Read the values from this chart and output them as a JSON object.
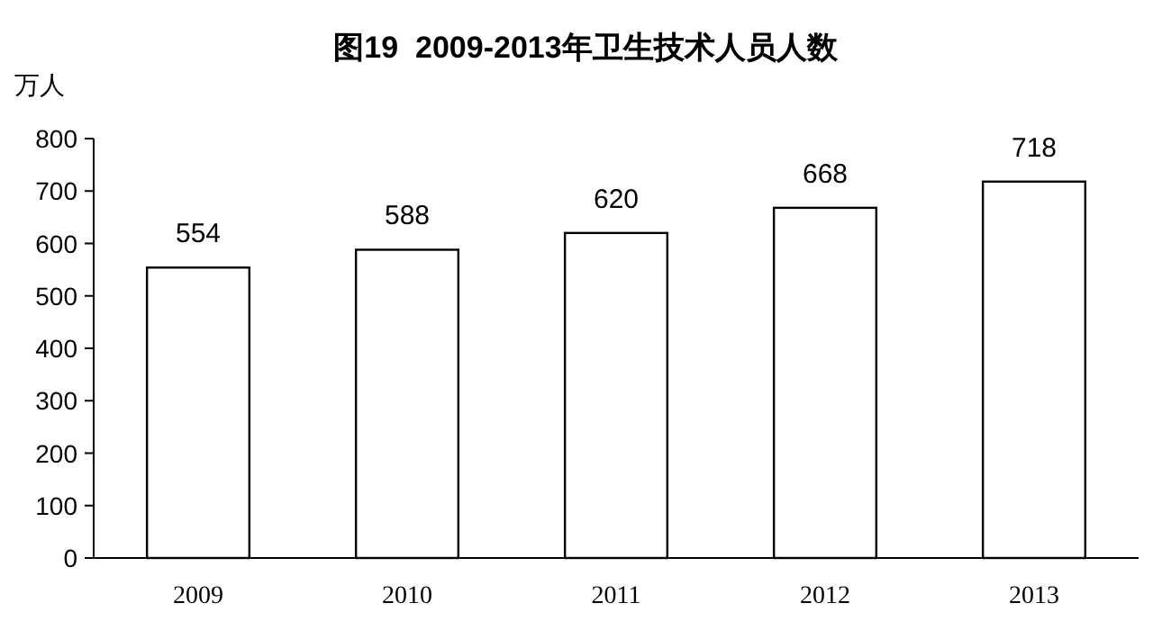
{
  "chart_data": {
    "type": "bar",
    "title": "图19  2009-2013年卫生技术人员人数",
    "ylabel": "万人",
    "categories": [
      "2009",
      "2010",
      "2011",
      "2012",
      "2013"
    ],
    "values": [
      554,
      588,
      620,
      668,
      718
    ],
    "color": "#ffffff",
    "ylim": [
      0,
      800
    ],
    "yticks": [
      0,
      100,
      200,
      300,
      400,
      500,
      600,
      700,
      800
    ],
    "data_labels": true
  }
}
